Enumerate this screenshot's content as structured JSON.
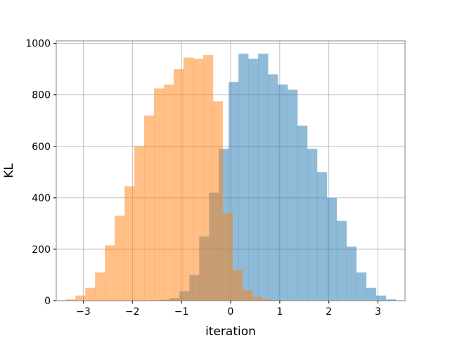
{
  "chart_data": {
    "type": "histogram",
    "title": "",
    "xlabel": "iteration",
    "ylabel": "KL",
    "xlim": [
      -3.55,
      3.55
    ],
    "ylim": [
      0,
      1010
    ],
    "xticks": [
      -3,
      -2,
      -1,
      0,
      1,
      2,
      3
    ],
    "xtick_labels": [
      "−3",
      "−2",
      "−1",
      "0",
      "1",
      "2",
      "3"
    ],
    "yticks": [
      0,
      200,
      400,
      600,
      800,
      1000
    ],
    "ytick_labels": [
      "0",
      "200",
      "400",
      "600",
      "800",
      "1000"
    ],
    "grid": true,
    "legend": "none",
    "series": [
      {
        "color": "#1f77b4",
        "alpha": 0.5,
        "bin_start": -1.64,
        "bin_width": 0.2,
        "values": [
          2,
          4,
          10,
          37,
          100,
          250,
          420,
          590,
          850,
          960,
          940,
          960,
          880,
          840,
          820,
          680,
          590,
          500,
          400,
          310,
          210,
          110,
          50,
          20,
          5
        ]
      },
      {
        "color": "#ff7f0e",
        "alpha": 0.5,
        "bin_start": -3.36,
        "bin_width": 0.2,
        "values": [
          5,
          20,
          50,
          110,
          215,
          330,
          445,
          600,
          720,
          825,
          840,
          900,
          945,
          940,
          955,
          775,
          340,
          120,
          40,
          15,
          5,
          2
        ]
      }
    ]
  }
}
